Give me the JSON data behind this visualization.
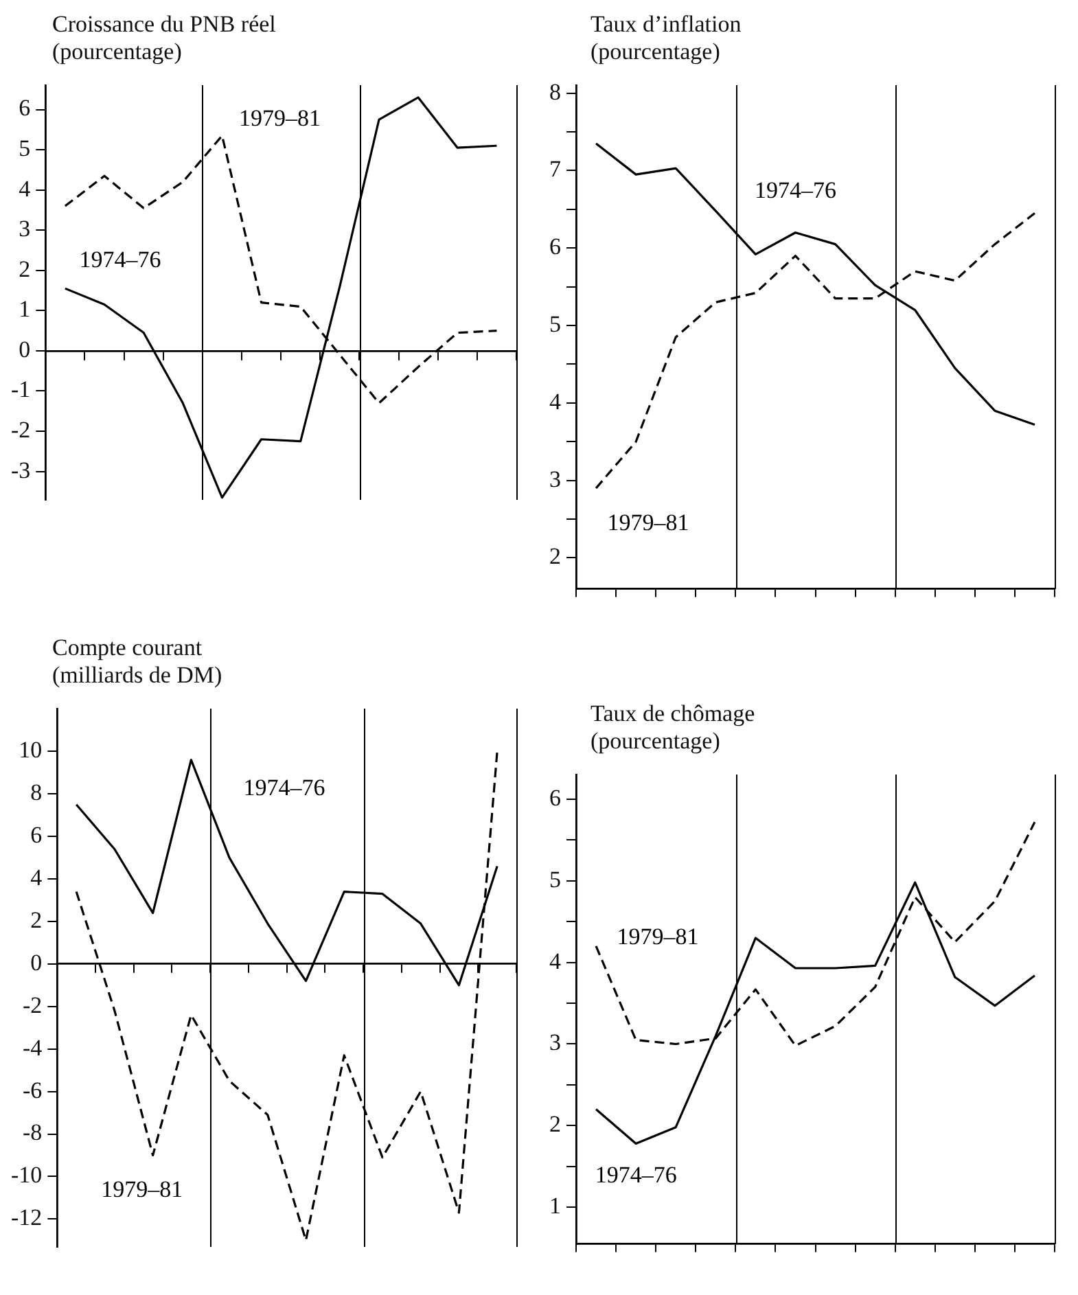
{
  "chart_data": [
    {
      "type": "line",
      "title": "Croissance du PNB réel",
      "subtitle": "(pourcentage)",
      "categories": [
        null,
        null,
        null,
        null,
        null,
        null,
        null,
        null,
        null,
        null,
        null,
        null
      ],
      "ylim": [
        -3.7,
        6.6
      ],
      "yticks": [
        -3,
        -2,
        -1,
        0,
        1,
        2,
        3,
        4,
        5,
        6
      ],
      "tick_labels": "y",
      "grid": false,
      "marker": "none",
      "series": [
        {
          "name": "1974–76",
          "color": "#000000",
          "line_style": "solid",
          "values": [
            1.55,
            1.15,
            0.45,
            -1.3,
            -3.65,
            -2.2,
            -2.25,
            1.6,
            5.75,
            6.3,
            5.05,
            5.1
          ]
        },
        {
          "name": "1979–81",
          "color": "#000000",
          "line_style": "dashed",
          "values": [
            3.6,
            4.35,
            3.55,
            4.2,
            5.35,
            1.2,
            1.1,
            -0.1,
            -1.3,
            -0.4,
            0.45,
            0.5
          ]
        }
      ]
    },
    {
      "type": "line",
      "title": "Taux d’inflation",
      "subtitle": "(pourcentage)",
      "categories": [
        null,
        null,
        null,
        null,
        null,
        null,
        null,
        null,
        null,
        null,
        null,
        null
      ],
      "ylim": [
        1.6,
        8.1
      ],
      "yticks": [
        2,
        {
          "value": 2.5,
          "label": null
        },
        3,
        {
          "value": 3.5,
          "label": null
        },
        4,
        {
          "value": 4.5,
          "label": null
        },
        5,
        {
          "value": 5.5,
          "label": null
        },
        6,
        {
          "value": 6.5,
          "label": null
        },
        7,
        {
          "value": 7.5,
          "label": null
        },
        8
      ],
      "tick_labels": "y",
      "grid": false,
      "marker": "none",
      "series": [
        {
          "name": "1974–76",
          "color": "#000000",
          "line_style": "solid",
          "values": [
            7.35,
            6.95,
            7.03,
            6.48,
            5.92,
            6.2,
            6.05,
            5.52,
            5.2,
            4.45,
            3.9,
            3.72
          ]
        },
        {
          "name": "1979–81",
          "color": "#000000",
          "line_style": "dashed",
          "values": [
            2.9,
            3.5,
            4.85,
            5.3,
            5.42,
            5.9,
            5.35,
            5.35,
            5.7,
            5.58,
            6.05,
            6.45
          ]
        }
      ]
    },
    {
      "type": "line",
      "title": "Compte courant",
      "subtitle": "(milliards de DM)",
      "categories": [
        null,
        null,
        null,
        null,
        null,
        null,
        null,
        null,
        null,
        null,
        null,
        null
      ],
      "ylim": [
        -13.3,
        12
      ],
      "yticks": [
        -12,
        -10,
        -8,
        -6,
        -4,
        -2,
        0,
        2,
        4,
        6,
        8,
        10
      ],
      "tick_labels": "y",
      "grid": false,
      "marker": "none",
      "series": [
        {
          "name": "1974–76",
          "color": "#000000",
          "line_style": "solid",
          "values": [
            7.5,
            5.4,
            2.4,
            9.6,
            5.0,
            1.9,
            -0.8,
            3.4,
            3.3,
            1.9,
            -1.0,
            4.6
          ]
        },
        {
          "name": "1979–81",
          "color": "#000000",
          "line_style": "dashed",
          "values": [
            3.4,
            -2.2,
            -9.0,
            -2.4,
            -5.5,
            -7.1,
            -13.0,
            -4.3,
            -9.1,
            -6.0,
            -11.7,
            10.0
          ]
        }
      ]
    },
    {
      "type": "line",
      "title": "Taux de chômage",
      "subtitle": "(pourcentage)",
      "categories": [
        null,
        null,
        null,
        null,
        null,
        null,
        null,
        null,
        null,
        null,
        null,
        null
      ],
      "ylim": [
        0.55,
        6.3
      ],
      "yticks": [
        1,
        {
          "value": 1.5,
          "label": null
        },
        2,
        {
          "value": 2.5,
          "label": null
        },
        3,
        {
          "value": 3.5,
          "label": null
        },
        4,
        {
          "value": 4.5,
          "label": null
        },
        5,
        {
          "value": 5.5,
          "label": null
        },
        6
      ],
      "tick_labels": "y",
      "grid": false,
      "marker": "none",
      "series": [
        {
          "name": "1974–76",
          "color": "#000000",
          "line_style": "solid",
          "values": [
            2.2,
            1.78,
            1.98,
            3.1,
            4.3,
            3.93,
            3.93,
            3.96,
            4.98,
            3.82,
            3.47,
            3.84
          ]
        },
        {
          "name": "1979–81",
          "color": "#000000",
          "line_style": "dashed",
          "values": [
            4.2,
            3.05,
            3.0,
            3.07,
            3.67,
            2.98,
            3.22,
            3.7,
            4.8,
            4.25,
            4.75,
            5.72
          ]
        }
      ]
    }
  ]
}
